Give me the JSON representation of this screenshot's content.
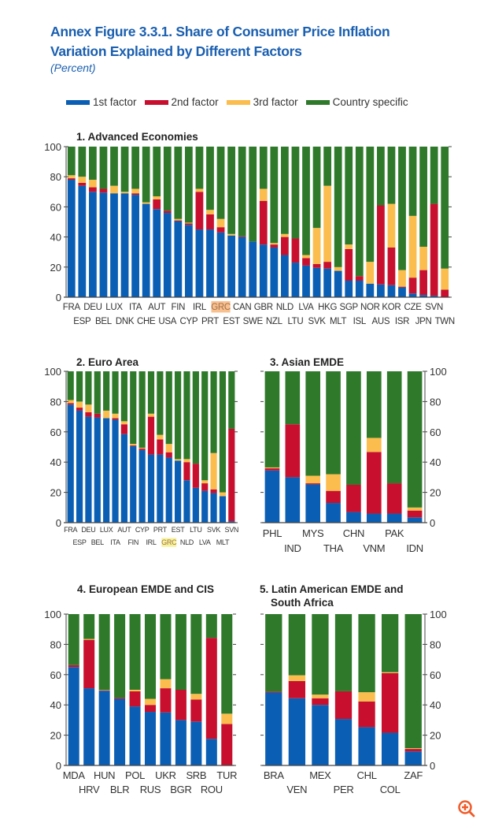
{
  "title_line1": "Annex Figure 3.3.1.  Share of Consumer Price Inflation",
  "title_line2": "Variation Explained by Different Factors",
  "subtitle": "(Percent)",
  "legend": [
    {
      "label": "1st factor",
      "color": "#0a5fb4"
    },
    {
      "label": "2nd factor",
      "color": "#c8102e"
    },
    {
      "label": "3rd factor",
      "color": "#fbbd4e"
    },
    {
      "label": "Country specific",
      "color": "#2e7a2a"
    }
  ],
  "zoom_icon": "zoom-in-icon",
  "chart_data": [
    {
      "type": "bar",
      "stacked": true,
      "title": "1. Advanced Economies",
      "ylim": [
        0,
        100
      ],
      "yticks": [
        0,
        20,
        40,
        60,
        80,
        100
      ],
      "highlight": "GRC",
      "highlight_color": "#f9c08f",
      "categories": [
        "FRA",
        "ESP",
        "DEU",
        "BEL",
        "LUX",
        "DNK",
        "ITA",
        "CHE",
        "AUT",
        "USA",
        "FIN",
        "CYP",
        "IRL",
        "PRT",
        "GRC",
        "EST",
        "CAN",
        "SWE",
        "GBR",
        "NZL",
        "NLD",
        "LTU",
        "LVA",
        "SVK",
        "HKG",
        "MLT",
        "SGP",
        "ISL",
        "NOR",
        "AUS",
        "KOR",
        "ISR",
        "CZE",
        "JPN",
        "SVN",
        "TWN"
      ],
      "series": [
        {
          "name": "1st factor",
          "values": [
            78,
            74,
            70,
            69.5,
            69,
            69,
            68,
            62,
            58.5,
            56,
            50.5,
            48,
            45,
            45,
            43,
            41,
            40,
            37,
            35,
            33,
            28,
            23,
            21,
            19.5,
            19,
            17.5,
            11,
            11,
            9,
            8.5,
            8,
            6.5,
            2.5,
            1.5,
            1,
            0
          ]
        },
        {
          "name": "2nd factor",
          "values": [
            1,
            2,
            3,
            2.5,
            0,
            0,
            1,
            0,
            6.5,
            1.5,
            0.5,
            1,
            25,
            10,
            3.5,
            0,
            0.5,
            0,
            29,
            2,
            12,
            16,
            5,
            2.5,
            4.5,
            0,
            21,
            3,
            0,
            52.5,
            25,
            0.5,
            10.5,
            16.5,
            61,
            5
          ]
        },
        {
          "name": "3rd factor",
          "values": [
            2,
            4,
            5,
            0,
            5,
            1,
            3,
            1,
            2,
            0,
            1,
            0.5,
            2,
            3,
            5.5,
            1,
            0,
            0,
            8,
            1,
            2,
            0,
            2,
            24,
            50.5,
            2.5,
            3,
            0,
            14.5,
            0,
            29,
            11,
            41,
            15.5,
            0,
            14
          ]
        },
        {
          "name": "Country specific",
          "values": [
            19,
            20,
            22,
            28,
            26,
            30,
            28,
            37,
            33,
            42.5,
            48,
            50.5,
            28,
            42,
            48,
            58,
            59.5,
            63,
            28,
            64,
            58,
            61,
            72,
            54,
            26,
            80,
            65,
            86,
            76.5,
            39,
            38,
            82,
            46,
            66.5,
            38,
            81
          ]
        }
      ]
    },
    {
      "type": "bar",
      "stacked": true,
      "title": "2. Euro Area",
      "ylim": [
        0,
        100
      ],
      "yticks": [
        0,
        20,
        40,
        60,
        80,
        100
      ],
      "highlight": "GRC",
      "highlight_color": "#f6f39c",
      "categories": [
        "FRA",
        "ESP",
        "DEU",
        "BEL",
        "LUX",
        "ITA",
        "AUT",
        "FIN",
        "CYP",
        "IRL",
        "PRT",
        "GRC",
        "EST",
        "NLD",
        "LTU",
        "LVA",
        "SVK",
        "MLT",
        "SVN"
      ],
      "series": [
        {
          "name": "1st factor",
          "values": [
            78,
            74,
            70,
            69.5,
            69,
            68,
            58.5,
            50.5,
            48,
            45,
            45,
            43,
            41,
            28,
            23,
            21,
            19.5,
            17.5,
            1
          ]
        },
        {
          "name": "2nd factor",
          "values": [
            1,
            2,
            3,
            2.5,
            0,
            1,
            6.5,
            0.5,
            1,
            25,
            10,
            3.5,
            0,
            12,
            16,
            5,
            2.5,
            0,
            61
          ]
        },
        {
          "name": "3rd factor",
          "values": [
            2,
            4,
            5,
            0,
            5,
            3,
            2,
            1,
            0.5,
            2,
            3,
            5.5,
            1,
            2,
            0,
            2,
            24,
            2.5,
            0
          ]
        },
        {
          "name": "Country specific",
          "values": [
            19,
            20,
            22,
            28,
            26,
            28,
            33,
            48,
            50.5,
            28,
            42,
            48,
            58,
            58,
            61,
            72,
            54,
            80,
            38
          ]
        }
      ]
    },
    {
      "type": "bar",
      "stacked": true,
      "title": "3. Asian EMDE",
      "ylim": [
        0,
        100
      ],
      "yticks": [
        0,
        20,
        40,
        60,
        80,
        100
      ],
      "categories": [
        "PHL",
        "IND",
        "MYS",
        "THA",
        "CHN",
        "VNM",
        "PAK",
        "IDN"
      ],
      "series": [
        {
          "name": "1st factor",
          "values": [
            34.5,
            30,
            25.3,
            13,
            7,
            6,
            6,
            3.5
          ]
        },
        {
          "name": "2nd factor",
          "values": [
            1.4,
            35,
            0.7,
            8,
            18,
            40.7,
            20,
            4.5
          ]
        },
        {
          "name": "3rd factor",
          "values": [
            0.6,
            0,
            5,
            11,
            0,
            9.3,
            0,
            2
          ]
        },
        {
          "name": "Country specific",
          "values": [
            63.5,
            35,
            69,
            68,
            75,
            44,
            74,
            90
          ]
        }
      ]
    },
    {
      "type": "bar",
      "stacked": true,
      "title": "4. European EMDE and CIS",
      "ylim": [
        0,
        100
      ],
      "yticks": [
        0,
        20,
        40,
        60,
        80,
        100
      ],
      "categories": [
        "MDA",
        "HRV",
        "HUN",
        "BLR",
        "POL",
        "RUS",
        "UKR",
        "BGR",
        "SRB",
        "ROU",
        "TUR"
      ],
      "series": [
        {
          "name": "1st factor",
          "values": [
            65,
            51,
            49.4,
            44,
            39,
            35.4,
            35,
            30,
            29,
            17.6,
            0
          ]
        },
        {
          "name": "2nd factor",
          "values": [
            1.3,
            32,
            0.3,
            0.7,
            10,
            4.6,
            16,
            20,
            14.6,
            66.7,
            27.4
          ]
        },
        {
          "name": "3rd factor",
          "values": [
            0,
            0.6,
            0.3,
            0,
            1,
            4,
            6,
            0,
            3.7,
            0,
            6.8
          ]
        },
        {
          "name": "Country specific",
          "values": [
            33.7,
            16.4,
            50,
            55.3,
            50,
            56,
            43,
            50,
            52.7,
            15.7,
            65.8
          ]
        }
      ]
    },
    {
      "type": "bar",
      "stacked": true,
      "title": "5. Latin American EMDE and South Africa",
      "title_lines": [
        "5. Latin American EMDE and",
        "South Africa"
      ],
      "ylim": [
        0,
        100
      ],
      "yticks": [
        0,
        20,
        40,
        60,
        80,
        100
      ],
      "categories": [
        "BRA",
        "VEN",
        "MEX",
        "PER",
        "CHL",
        "COL",
        "ZAF"
      ],
      "series": [
        {
          "name": "1st factor",
          "values": [
            48.2,
            44.4,
            40,
            30.7,
            25.3,
            21.6,
            9.3
          ]
        },
        {
          "name": "2nd factor",
          "values": [
            0.6,
            11.4,
            4.4,
            18.3,
            17,
            39.4,
            1.6
          ]
        },
        {
          "name": "3rd factor",
          "values": [
            0,
            3.8,
            2.4,
            0,
            6.1,
            0.6,
            0.5
          ]
        },
        {
          "name": "Country specific",
          "values": [
            51.2,
            40.4,
            53.2,
            51,
            51.6,
            38.4,
            88.6
          ]
        }
      ]
    }
  ]
}
